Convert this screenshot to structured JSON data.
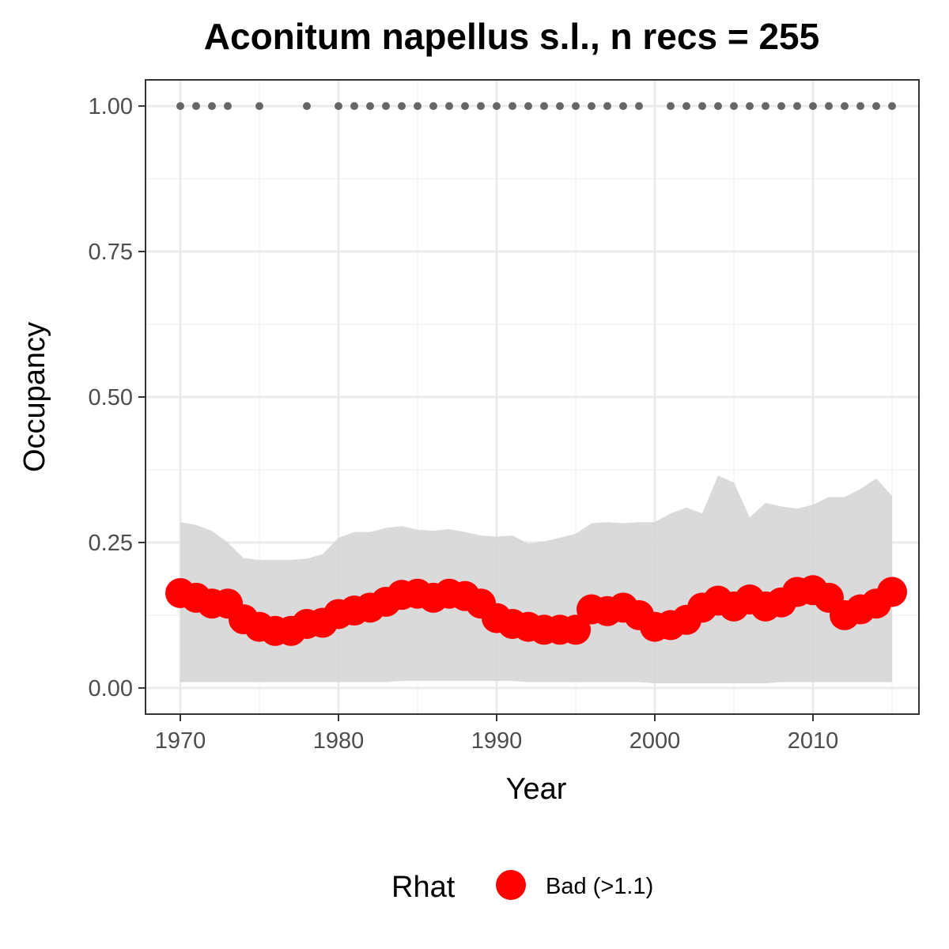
{
  "chart_data": {
    "type": "line",
    "title": "Aconitum napellus s.l., n recs = 255",
    "xlabel": "Year",
    "ylabel": "Occupancy",
    "xlim": [
      1967.8,
      2016.7
    ],
    "ylim": [
      -0.045,
      1.045
    ],
    "x_ticks": [
      1970,
      1980,
      1990,
      2000,
      2010
    ],
    "x_tick_labels": [
      "1970",
      "1980",
      "1990",
      "2000",
      "2010"
    ],
    "y_ticks": [
      0,
      0.25,
      0.5,
      0.75,
      1
    ],
    "y_tick_labels": [
      "0.00",
      "0.25",
      "0.50",
      "0.75",
      "1.00"
    ],
    "grid": true,
    "series": [
      {
        "name": "Bad (>1.1)",
        "kind": "points",
        "color": "#ff0000",
        "x": [
          1970,
          1971,
          1972,
          1973,
          1974,
          1975,
          1976,
          1977,
          1978,
          1979,
          1980,
          1981,
          1982,
          1983,
          1984,
          1985,
          1986,
          1987,
          1988,
          1989,
          1990,
          1991,
          1992,
          1993,
          1994,
          1995,
          1996,
          1997,
          1998,
          1999,
          2000,
          2001,
          2002,
          2003,
          2004,
          2005,
          2006,
          2007,
          2008,
          2009,
          2010,
          2011,
          2012,
          2013,
          2014,
          2015
        ],
        "y": [
          0.163,
          0.155,
          0.145,
          0.145,
          0.118,
          0.105,
          0.098,
          0.098,
          0.11,
          0.112,
          0.127,
          0.133,
          0.138,
          0.148,
          0.16,
          0.162,
          0.155,
          0.162,
          0.158,
          0.145,
          0.12,
          0.11,
          0.105,
          0.1,
          0.1,
          0.1,
          0.135,
          0.132,
          0.138,
          0.125,
          0.105,
          0.108,
          0.117,
          0.138,
          0.15,
          0.14,
          0.152,
          0.14,
          0.147,
          0.165,
          0.168,
          0.155,
          0.125,
          0.135,
          0.145,
          0.165
        ]
      }
    ],
    "credible_interval": {
      "color": "#d6d6d6",
      "x": [
        1970,
        1971,
        1972,
        1973,
        1974,
        1975,
        1976,
        1977,
        1978,
        1979,
        1980,
        1981,
        1982,
        1983,
        1984,
        1985,
        1986,
        1987,
        1988,
        1989,
        1990,
        1991,
        1992,
        1993,
        1994,
        1995,
        1996,
        1997,
        1998,
        1999,
        2000,
        2001,
        2002,
        2003,
        2004,
        2005,
        2006,
        2007,
        2008,
        2009,
        2010,
        2011,
        2012,
        2013,
        2014,
        2015
      ],
      "upper": [
        0.285,
        0.28,
        0.27,
        0.25,
        0.223,
        0.22,
        0.22,
        0.22,
        0.222,
        0.23,
        0.258,
        0.268,
        0.268,
        0.275,
        0.278,
        0.272,
        0.27,
        0.273,
        0.268,
        0.262,
        0.26,
        0.262,
        0.248,
        0.252,
        0.258,
        0.265,
        0.283,
        0.285,
        0.283,
        0.285,
        0.285,
        0.3,
        0.31,
        0.3,
        0.365,
        0.353,
        0.293,
        0.318,
        0.312,
        0.308,
        0.315,
        0.328,
        0.328,
        0.342,
        0.36,
        0.33
      ],
      "lower": [
        0.01,
        0.01,
        0.01,
        0.01,
        0.01,
        0.01,
        0.01,
        0.01,
        0.01,
        0.01,
        0.01,
        0.01,
        0.01,
        0.01,
        0.012,
        0.012,
        0.012,
        0.012,
        0.012,
        0.012,
        0.012,
        0.012,
        0.01,
        0.01,
        0.01,
        0.01,
        0.01,
        0.01,
        0.01,
        0.01,
        0.008,
        0.008,
        0.008,
        0.008,
        0.008,
        0.008,
        0.008,
        0.008,
        0.01,
        0.01,
        0.01,
        0.01,
        0.01,
        0.01,
        0.01,
        0.01
      ]
    },
    "observed_records": {
      "color": "#666666",
      "y": 1,
      "x": [
        1970,
        1971,
        1972,
        1973,
        1975,
        1978,
        1980,
        1981,
        1982,
        1983,
        1984,
        1985,
        1986,
        1987,
        1988,
        1989,
        1990,
        1991,
        1992,
        1993,
        1994,
        1995,
        1996,
        1997,
        1998,
        1999,
        2001,
        2002,
        2003,
        2004,
        2005,
        2006,
        2007,
        2008,
        2009,
        2010,
        2011,
        2012,
        2013,
        2014,
        2015
      ]
    },
    "legend": {
      "title": "Rhat",
      "position": "bottom",
      "entries": [
        {
          "label": "Bad (>1.1)",
          "color": "#ff0000"
        }
      ]
    }
  }
}
